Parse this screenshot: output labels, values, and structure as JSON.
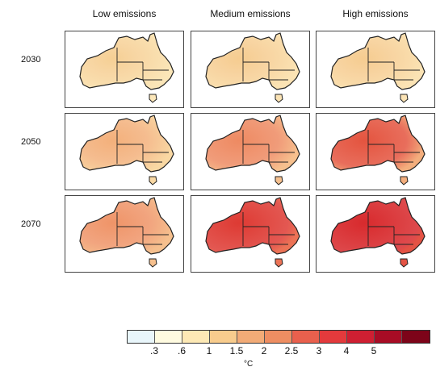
{
  "columns": [
    "Low emissions",
    "Medium emissions",
    "High emissions"
  ],
  "rows": [
    "2030",
    "2050",
    "2070"
  ],
  "panels": [
    [
      {
        "base": "#fbe6b8",
        "hot": "#f6cf94",
        "hot_level": 0.4
      },
      {
        "base": "#fbe3b4",
        "hot": "#f6cc90",
        "hot_level": 0.45
      },
      {
        "base": "#fbe3b4",
        "hot": "#f6cc90",
        "hot_level": 0.45
      }
    ],
    [
      {
        "base": "#f9d8a3",
        "hot": "#f3b07b",
        "hot_level": 0.55
      },
      {
        "base": "#f6c08e",
        "hot": "#ee8a62",
        "hot_level": 0.65
      },
      {
        "base": "#f3ae7d",
        "hot": "#e4543f",
        "hot_level": 0.7
      }
    ],
    [
      {
        "base": "#f6c08e",
        "hot": "#ef9468",
        "hot_level": 0.6
      },
      {
        "base": "#ec7356",
        "hot": "#de3a33",
        "hot_level": 0.8
      },
      {
        "base": "#e45344",
        "hot": "#d82a2d",
        "hot_level": 0.9
      }
    ]
  ],
  "legend": {
    "colors": [
      "#e9f6fb",
      "#fffbe0",
      "#fde9b5",
      "#f8cc8d",
      "#f2ab77",
      "#ee8e62",
      "#e9604d",
      "#e33a3c",
      "#cf1f32",
      "#a80c25",
      "#7d0419"
    ],
    "ticks": [
      ".3",
      ".6",
      "1",
      "1.5",
      "2",
      "2.5",
      "3",
      "4",
      "5"
    ],
    "unit": "°C"
  }
}
